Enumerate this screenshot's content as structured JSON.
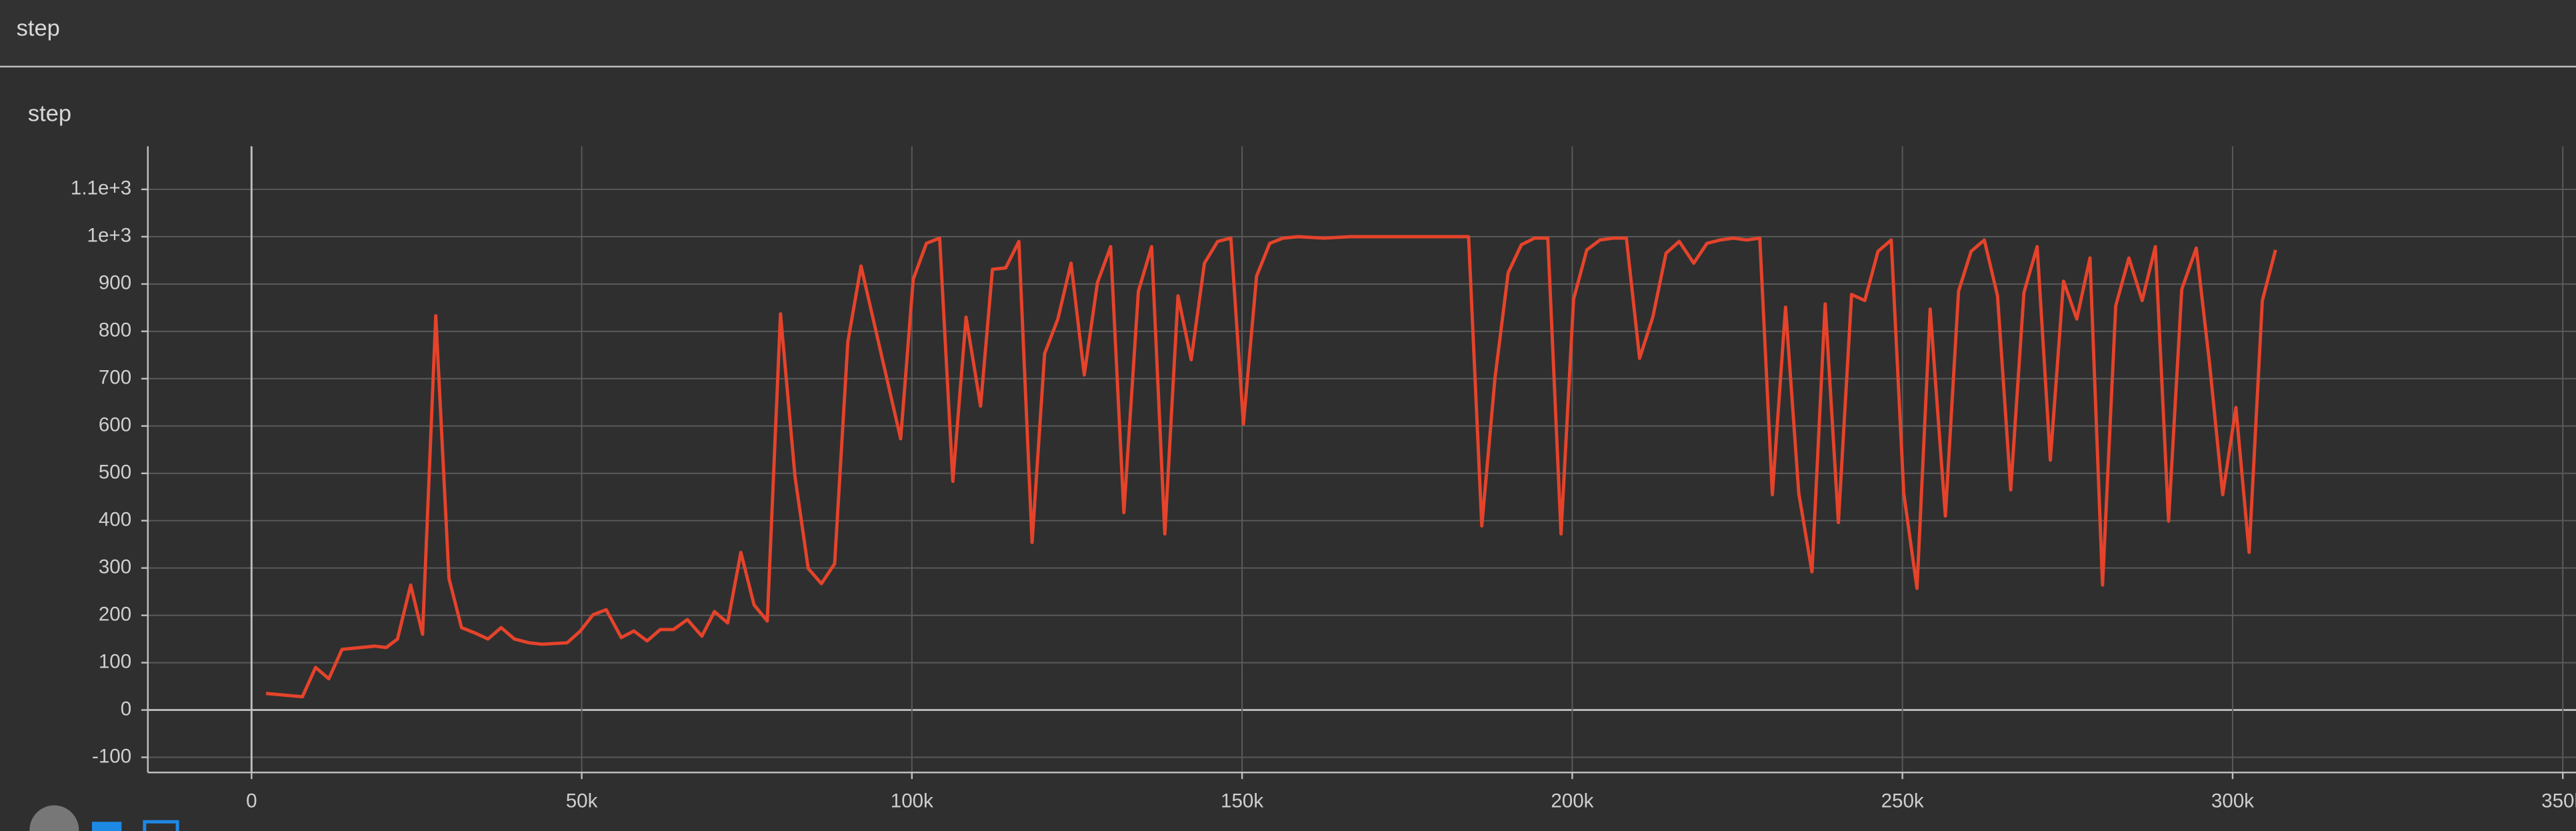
{
  "header": {
    "title": "step"
  },
  "chart_data": {
    "type": "line",
    "title": "step",
    "x": [
      2200,
      7700,
      9700,
      11700,
      13700,
      18700,
      20400,
      22100,
      24100,
      25900,
      27900,
      29900,
      31800,
      33800,
      35800,
      37800,
      39800,
      42000,
      44000,
      47800,
      49800,
      51700,
      53700,
      56000,
      57900,
      59900,
      61900,
      63900,
      66000,
      68200,
      70100,
      72100,
      74100,
      76100,
      78100,
      80100,
      82300,
      84300,
      86300,
      88300,
      90300,
      92300,
      98300,
      100200,
      102200,
      104200,
      106200,
      108200,
      110400,
      112200,
      114200,
      116200,
      118200,
      120100,
      122100,
      124100,
      126100,
      128100,
      130100,
      132100,
      134300,
      136300,
      138300,
      140300,
      142300,
      144300,
      146300,
      148300,
      150200,
      152200,
      154200,
      156200,
      158500,
      162400,
      166400,
      184300,
      186300,
      188300,
      190300,
      192300,
      194300,
      196300,
      198300,
      200200,
      202200,
      204200,
      206200,
      208200,
      210200,
      212200,
      214200,
      216200,
      218400,
      220400,
      222400,
      224400,
      226400,
      228400,
      230300,
      232300,
      234300,
      236300,
      238300,
      240300,
      242300,
      244300,
      246300,
      248300,
      250200,
      252200,
      254200,
      256500,
      258500,
      260400,
      262400,
      264400,
      266400,
      268400,
      270400,
      272400,
      274400,
      276400,
      278400,
      280300,
      282300,
      284300,
      286300,
      288300,
      290300,
      292300,
      294500,
      296500,
      298500,
      300500,
      302500,
      304500,
      306500
    ],
    "series": [
      {
        "color": "#e5432b",
        "values": [
          35,
          28,
          90,
          66,
          128,
          135,
          132,
          150,
          264,
          160,
          833,
          278,
          174,
          163,
          150,
          174,
          150,
          142,
          139,
          142,
          167,
          201,
          212,
          153,
          167,
          146,
          170,
          170,
          191,
          156,
          208,
          184,
          333,
          222,
          188,
          837,
          493,
          299,
          267,
          309,
          778,
          938,
          573,
          910,
          986,
          997,
          483,
          830,
          642,
          931,
          934,
          990,
          354,
          753,
          826,
          944,
          708,
          903,
          979,
          417,
          885,
          979,
          372,
          875,
          740,
          944,
          990,
          997,
          604,
          917,
          986,
          997,
          1000,
          997,
          1000,
          1000,
          389,
          701,
          924,
          983,
          997,
          997,
          372,
          868,
          972,
          993,
          997,
          997,
          743,
          830,
          965,
          990,
          944,
          986,
          993,
          997,
          993,
          997,
          455,
          851,
          458,
          292,
          858,
          396,
          878,
          865,
          969,
          993,
          458,
          257,
          847,
          410,
          885,
          969,
          993,
          875,
          465,
          882,
          979,
          528,
          906,
          826,
          955,
          264,
          854,
          955,
          865,
          979,
          399,
          889,
          976,
          733,
          455,
          639,
          333,
          865,
          972
        ]
      }
    ],
    "xlim": [
      -15700,
      352000
    ],
    "ylim": [
      -132,
      1191
    ],
    "xticks": [
      0,
      {
        "value": 50000,
        "label": "50k"
      },
      {
        "value": 100000,
        "label": "100k"
      },
      {
        "value": 150000,
        "label": "150k"
      },
      {
        "value": 200000,
        "label": "200k"
      },
      {
        "value": 250000,
        "label": "250k"
      },
      {
        "value": 300000,
        "label": "300k"
      },
      {
        "value": 350000,
        "label": "350k"
      }
    ],
    "yticks": [
      -100,
      0,
      100,
      200,
      300,
      400,
      500,
      600,
      700,
      800,
      900,
      {
        "value": 1000,
        "label": "1e+3"
      },
      {
        "value": 1100,
        "label": "1.1e+3"
      }
    ],
    "grid": true
  }
}
